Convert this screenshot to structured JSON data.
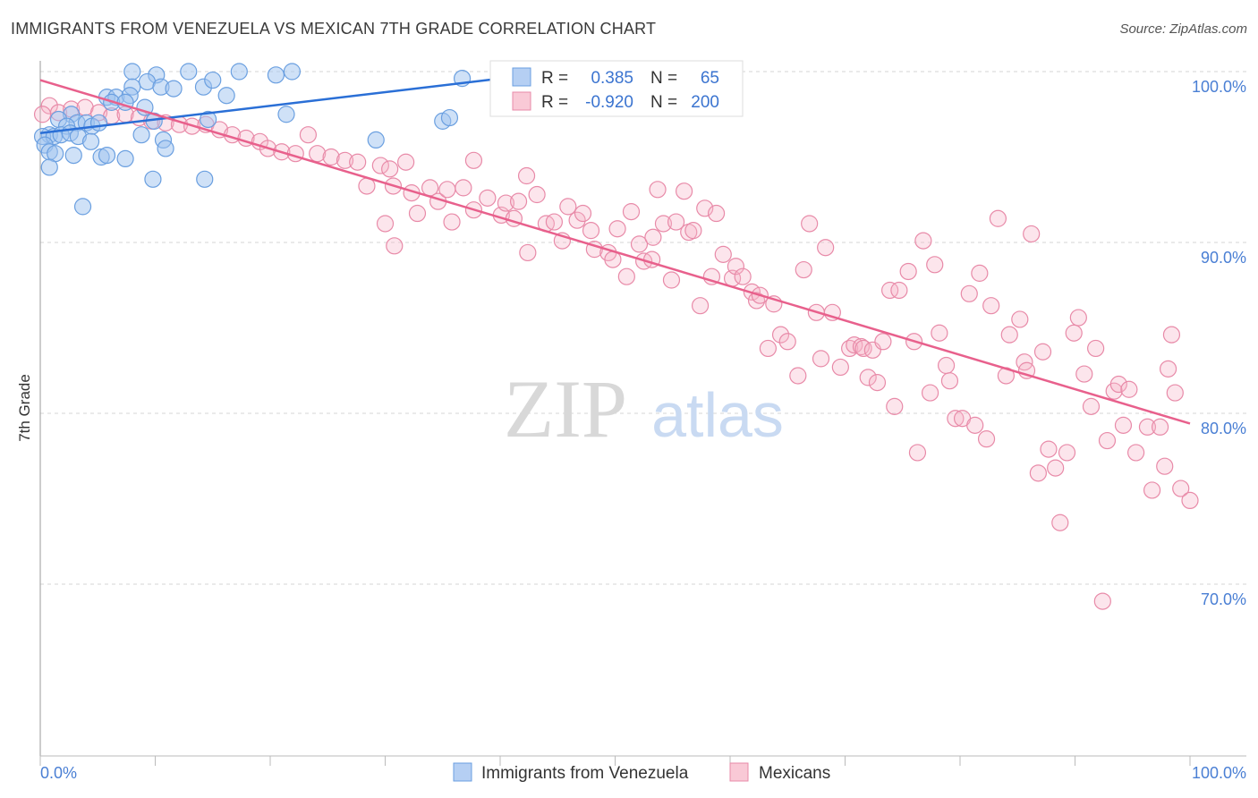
{
  "title": "IMMIGRANTS FROM VENEZUELA VS MEXICAN 7TH GRADE CORRELATION CHART",
  "source": "Source: ZipAtlas.com",
  "watermark": {
    "zip": "ZIP",
    "atlas": "atlas"
  },
  "colors": {
    "blue": "#6a9fe0",
    "blue_line": "#2a6fd6",
    "pink": "#e88aa8",
    "pink_line": "#e8608c",
    "label": "#4a7fd4"
  },
  "chart_data": {
    "type": "scatter",
    "title": "IMMIGRANTS FROM VENEZUELA VS MEXICAN 7TH GRADE CORRELATION CHART",
    "xlabel": "",
    "ylabel": "7th Grade",
    "xlim": [
      0,
      100
    ],
    "ylim": [
      60,
      100.6
    ],
    "x_tick_labels": [
      "0.0%",
      "100.0%"
    ],
    "y_ticks": [
      100,
      90,
      80,
      70
    ],
    "y_tick_labels": [
      "100.0%",
      "90.0%",
      "80.0%",
      "70.0%"
    ],
    "grid": true,
    "legend": {
      "placement": "top-center",
      "rows": [
        {
          "r_label": "R =",
          "r": "0.385",
          "n_label": "N =",
          "n": "65"
        },
        {
          "r_label": "R =",
          "r": "-0.920",
          "n_label": "N =",
          "n": "200"
        }
      ]
    },
    "series": [
      {
        "name": "Immigrants from Venezuela",
        "color": "#6a9fe0",
        "trend": {
          "x0": 0,
          "y0": 96.4,
          "x1": 40.1,
          "y1": 99.6
        },
        "points": [
          [
            8.0,
            100.0
          ],
          [
            10.1,
            99.8
          ],
          [
            12.9,
            100.0
          ],
          [
            17.3,
            100.0
          ],
          [
            21.9,
            100.0
          ],
          [
            20.5,
            99.8
          ],
          [
            9.3,
            99.4
          ],
          [
            8.0,
            99.1
          ],
          [
            10.5,
            99.1
          ],
          [
            11.6,
            99.0
          ],
          [
            14.2,
            99.1
          ],
          [
            15.0,
            99.5
          ],
          [
            16.2,
            98.6
          ],
          [
            36.7,
            99.6
          ],
          [
            5.8,
            98.5
          ],
          [
            6.6,
            98.5
          ],
          [
            7.8,
            98.6
          ],
          [
            6.2,
            98.2
          ],
          [
            7.4,
            98.2
          ],
          [
            9.1,
            97.9
          ],
          [
            9.9,
            97.1
          ],
          [
            21.4,
            97.5
          ],
          [
            14.6,
            97.2
          ],
          [
            35.0,
            97.1
          ],
          [
            35.6,
            97.3
          ],
          [
            29.2,
            96.0
          ],
          [
            2.7,
            97.5
          ],
          [
            3.2,
            97.0
          ],
          [
            1.6,
            97.2
          ],
          [
            4.0,
            97.0
          ],
          [
            4.5,
            96.8
          ],
          [
            5.1,
            97.0
          ],
          [
            2.3,
            96.8
          ],
          [
            0.8,
            96.3
          ],
          [
            0.2,
            96.2
          ],
          [
            1.2,
            96.2
          ],
          [
            1.8,
            96.3
          ],
          [
            2.6,
            96.4
          ],
          [
            3.3,
            96.2
          ],
          [
            4.4,
            95.9
          ],
          [
            10.7,
            96.0
          ],
          [
            8.8,
            96.3
          ],
          [
            10.9,
            95.5
          ],
          [
            0.4,
            95.7
          ],
          [
            0.8,
            95.3
          ],
          [
            1.3,
            95.2
          ],
          [
            2.9,
            95.1
          ],
          [
            5.3,
            95.0
          ],
          [
            5.8,
            95.1
          ],
          [
            7.4,
            94.9
          ],
          [
            0.8,
            94.4
          ],
          [
            9.8,
            93.7
          ],
          [
            14.3,
            93.7
          ],
          [
            3.7,
            92.1
          ]
        ]
      },
      {
        "name": "Mexicans",
        "color": "#e88aa8",
        "trend": {
          "x0": 0,
          "y0": 99.5,
          "x1": 100,
          "y1": 79.4
        },
        "points": [
          [
            0.8,
            98.0
          ],
          [
            0.2,
            97.5
          ],
          [
            1.6,
            97.6
          ],
          [
            2.7,
            97.8
          ],
          [
            3.9,
            97.9
          ],
          [
            5.1,
            97.6
          ],
          [
            6.2,
            97.4
          ],
          [
            7.4,
            97.5
          ],
          [
            8.6,
            97.3
          ],
          [
            9.7,
            97.1
          ],
          [
            10.9,
            97.0
          ],
          [
            12.1,
            96.9
          ],
          [
            13.2,
            96.8
          ],
          [
            14.4,
            96.9
          ],
          [
            15.6,
            96.6
          ],
          [
            16.7,
            96.3
          ],
          [
            17.9,
            96.1
          ],
          [
            19.1,
            95.9
          ],
          [
            19.8,
            95.5
          ],
          [
            21.0,
            95.3
          ],
          [
            22.2,
            95.2
          ],
          [
            23.3,
            96.3
          ],
          [
            24.1,
            95.2
          ],
          [
            25.3,
            95.0
          ],
          [
            26.5,
            94.8
          ],
          [
            27.6,
            94.7
          ],
          [
            28.4,
            93.3
          ],
          [
            29.6,
            94.5
          ],
          [
            30.4,
            94.3
          ],
          [
            31.8,
            94.7
          ],
          [
            30.0,
            91.1
          ],
          [
            30.8,
            89.8
          ],
          [
            30.7,
            93.3
          ],
          [
            32.3,
            92.9
          ],
          [
            32.8,
            91.7
          ],
          [
            33.9,
            93.2
          ],
          [
            34.6,
            92.4
          ],
          [
            35.4,
            93.1
          ],
          [
            35.8,
            91.2
          ],
          [
            36.8,
            93.2
          ],
          [
            37.7,
            94.8
          ],
          [
            37.7,
            91.9
          ],
          [
            38.9,
            92.6
          ],
          [
            40.1,
            91.6
          ],
          [
            40.5,
            92.3
          ],
          [
            41.2,
            91.4
          ],
          [
            41.6,
            92.4
          ],
          [
            42.3,
            93.9
          ],
          [
            43.2,
            92.8
          ],
          [
            42.4,
            89.4
          ],
          [
            44.0,
            91.1
          ],
          [
            44.7,
            91.2
          ],
          [
            45.4,
            90.1
          ],
          [
            45.9,
            92.1
          ],
          [
            46.7,
            91.3
          ],
          [
            47.2,
            91.7
          ],
          [
            47.9,
            90.7
          ],
          [
            48.2,
            89.6
          ],
          [
            49.4,
            89.4
          ],
          [
            49.8,
            89.0
          ],
          [
            50.2,
            90.8
          ],
          [
            51.0,
            88.0
          ],
          [
            51.4,
            91.8
          ],
          [
            52.1,
            89.9
          ],
          [
            52.5,
            88.9
          ],
          [
            53.2,
            89.0
          ],
          [
            53.3,
            90.3
          ],
          [
            53.7,
            93.1
          ],
          [
            54.2,
            91.1
          ],
          [
            54.9,
            87.8
          ],
          [
            55.3,
            91.2
          ],
          [
            56.0,
            93.0
          ],
          [
            56.4,
            90.6
          ],
          [
            56.8,
            90.7
          ],
          [
            57.4,
            86.3
          ],
          [
            57.8,
            92.0
          ],
          [
            58.4,
            88.0
          ],
          [
            58.8,
            91.7
          ],
          [
            59.4,
            89.3
          ],
          [
            60.2,
            87.9
          ],
          [
            60.5,
            88.6
          ],
          [
            61.1,
            88.0
          ],
          [
            61.9,
            87.1
          ],
          [
            62.3,
            86.6
          ],
          [
            62.6,
            86.9
          ],
          [
            63.3,
            83.8
          ],
          [
            63.8,
            86.4
          ],
          [
            64.4,
            84.6
          ],
          [
            65.0,
            84.2
          ],
          [
            65.9,
            82.2
          ],
          [
            66.4,
            88.4
          ],
          [
            66.9,
            91.1
          ],
          [
            67.5,
            85.9
          ],
          [
            67.9,
            83.2
          ],
          [
            68.3,
            89.7
          ],
          [
            68.9,
            85.9
          ],
          [
            69.6,
            82.7
          ],
          [
            70.4,
            83.8
          ],
          [
            70.8,
            84.0
          ],
          [
            71.4,
            83.9
          ],
          [
            71.6,
            83.8
          ],
          [
            72.4,
            83.7
          ],
          [
            72.0,
            82.1
          ],
          [
            72.8,
            81.8
          ],
          [
            73.3,
            84.2
          ],
          [
            73.9,
            87.2
          ],
          [
            74.3,
            80.4
          ],
          [
            74.7,
            87.2
          ],
          [
            75.5,
            88.3
          ],
          [
            76.0,
            84.2
          ],
          [
            76.3,
            77.7
          ],
          [
            76.8,
            90.1
          ],
          [
            77.4,
            81.2
          ],
          [
            77.8,
            88.7
          ],
          [
            78.2,
            84.7
          ],
          [
            78.8,
            82.8
          ],
          [
            79.1,
            81.9
          ],
          [
            79.6,
            79.7
          ],
          [
            80.2,
            79.7
          ],
          [
            80.8,
            87.0
          ],
          [
            81.3,
            79.3
          ],
          [
            81.7,
            88.2
          ],
          [
            82.3,
            78.5
          ],
          [
            82.7,
            86.3
          ],
          [
            83.3,
            91.4
          ],
          [
            84.0,
            82.2
          ],
          [
            84.3,
            84.6
          ],
          [
            85.2,
            85.5
          ],
          [
            85.6,
            83.0
          ],
          [
            85.8,
            82.5
          ],
          [
            86.2,
            90.5
          ],
          [
            86.8,
            76.5
          ],
          [
            87.2,
            83.6
          ],
          [
            87.7,
            77.9
          ],
          [
            88.3,
            76.8
          ],
          [
            88.7,
            73.6
          ],
          [
            89.3,
            77.7
          ],
          [
            89.9,
            84.7
          ],
          [
            90.3,
            85.6
          ],
          [
            90.8,
            82.3
          ],
          [
            91.4,
            80.4
          ],
          [
            91.8,
            83.8
          ],
          [
            92.4,
            69.0
          ],
          [
            92.8,
            78.4
          ],
          [
            93.4,
            81.3
          ],
          [
            93.8,
            81.7
          ],
          [
            94.2,
            79.3
          ],
          [
            94.7,
            81.4
          ],
          [
            95.3,
            77.7
          ],
          [
            96.3,
            79.2
          ],
          [
            96.7,
            75.5
          ],
          [
            97.4,
            79.2
          ],
          [
            97.8,
            76.9
          ],
          [
            98.1,
            82.6
          ],
          [
            98.4,
            84.6
          ],
          [
            98.7,
            81.2
          ],
          [
            99.2,
            75.6
          ],
          [
            100.0,
            74.9
          ]
        ]
      }
    ]
  }
}
